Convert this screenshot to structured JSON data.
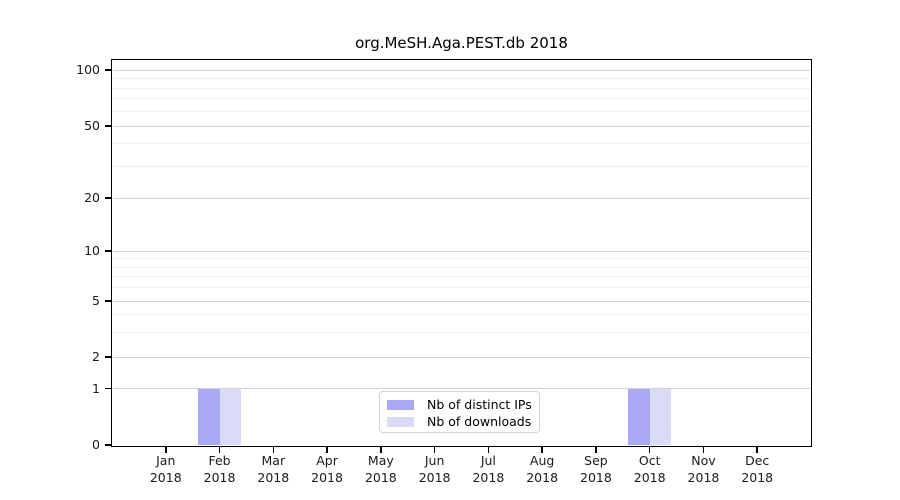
{
  "chart_data": {
    "type": "bar",
    "title": "org.MeSH.Aga.PEST.db 2018",
    "xlabel": "",
    "ylabel": "",
    "categories": [
      "Jan",
      "Feb",
      "Mar",
      "Apr",
      "May",
      "Jun",
      "Jul",
      "Aug",
      "Sep",
      "Oct",
      "Nov",
      "Dec"
    ],
    "year_label": "2018",
    "series": [
      {
        "name": "Nb of distinct IPs",
        "color": "#a9a9f5",
        "values": [
          0,
          1,
          0,
          0,
          0,
          0,
          0,
          0,
          0,
          1,
          0,
          0
        ]
      },
      {
        "name": "Nb of downloads",
        "color": "#dadaf9",
        "values": [
          0,
          1,
          0,
          0,
          0,
          0,
          0,
          0,
          0,
          1,
          0,
          0
        ]
      }
    ],
    "yaxis": {
      "scale": "log-like with linear segment below 1",
      "major_ticks": [
        0,
        1,
        2,
        5,
        10,
        20,
        50,
        100
      ],
      "minor_gridlines": [
        3,
        4,
        6,
        7,
        8,
        9,
        30,
        40,
        60,
        70,
        80,
        90
      ],
      "ylim": [
        0,
        115
      ]
    },
    "grid": "horizontal major and minor gridlines",
    "legend_position": "bottom-center inside plot",
    "colors": {
      "major_grid": "#d2d2d2",
      "minor_grid": "#ededed",
      "axis": "#000000",
      "background": "#ffffff"
    }
  }
}
